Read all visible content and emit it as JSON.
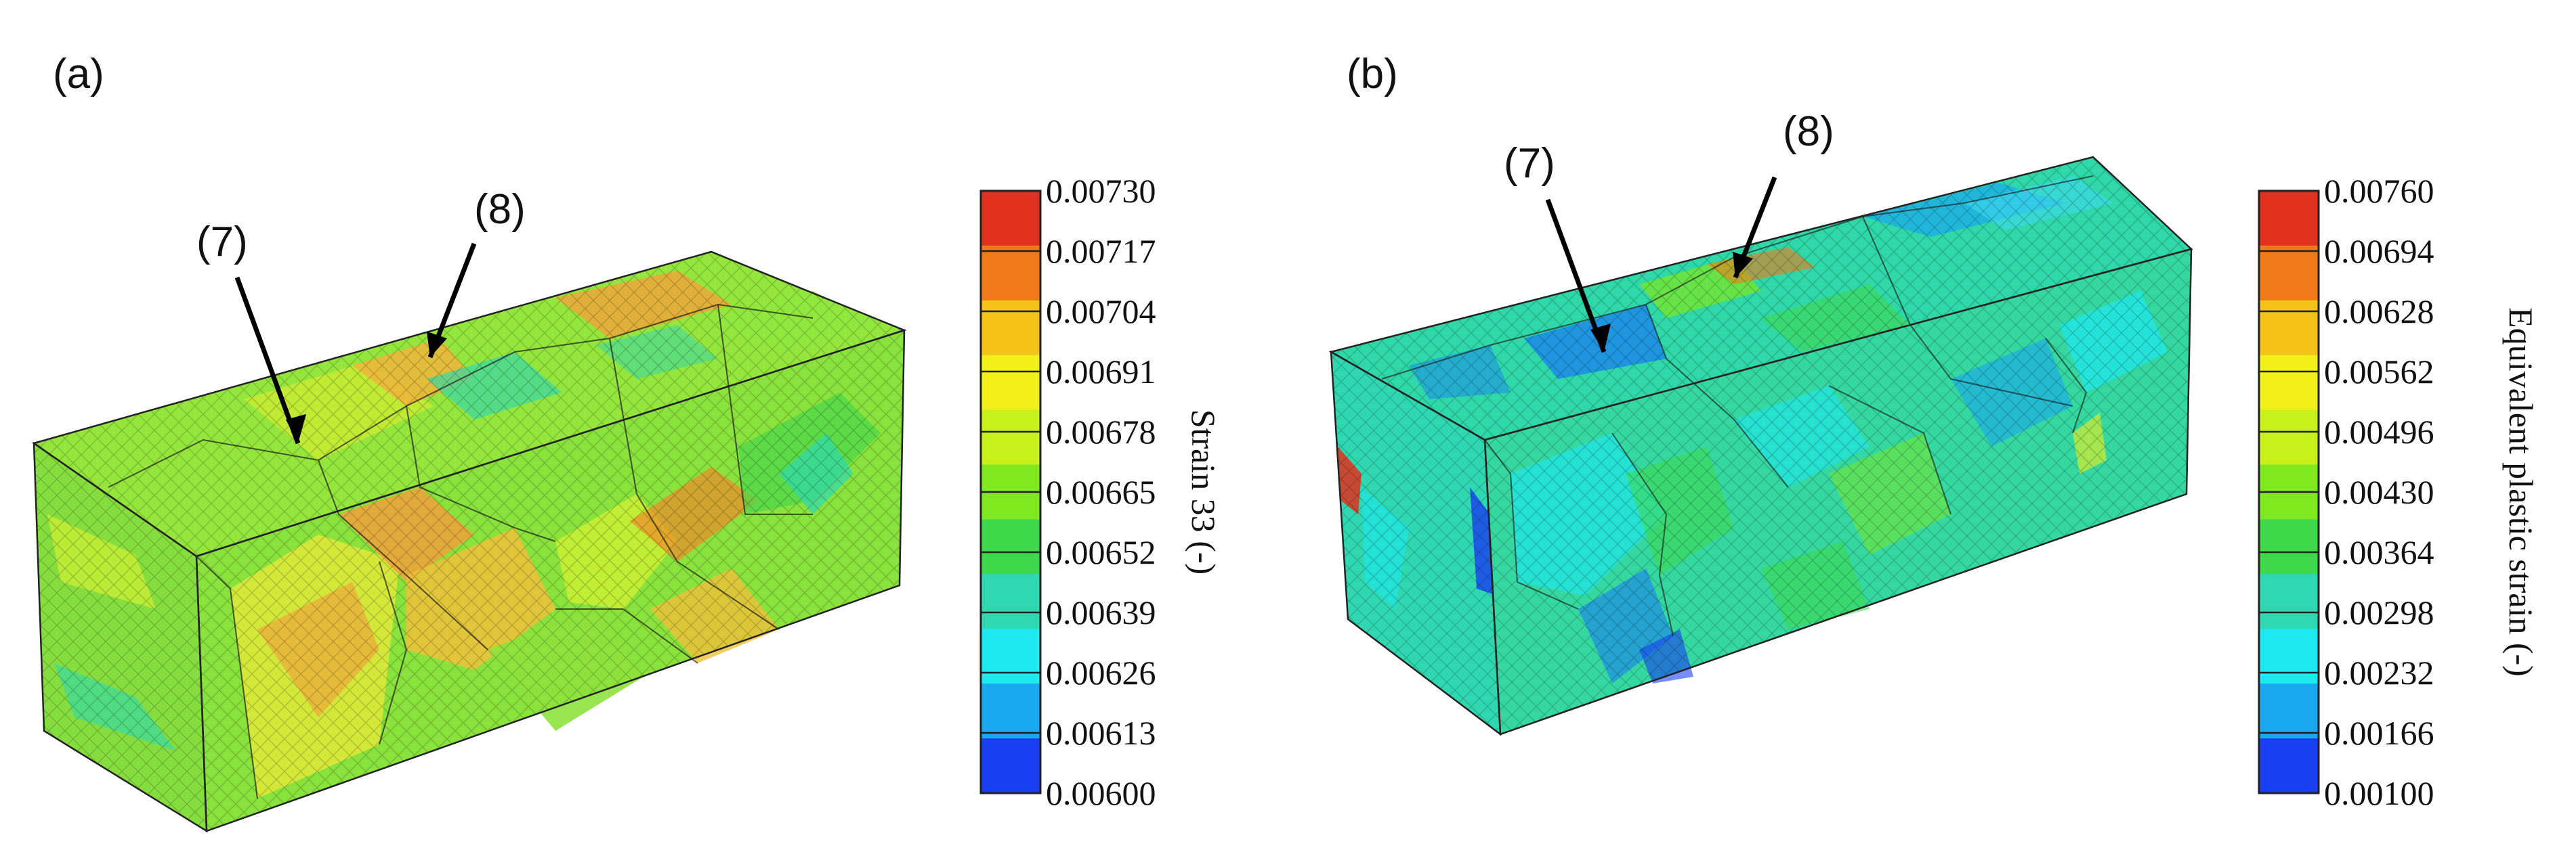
{
  "panels": [
    {
      "label": "(a)",
      "callouts": [
        "(7)",
        "(8)"
      ],
      "colorbar": {
        "title": "Strain 33 (-)",
        "ticks": [
          "0.00730",
          "0.00717",
          "0.00704",
          "0.00691",
          "0.00678",
          "0.00665",
          "0.00652",
          "0.00639",
          "0.00626",
          "0.00613",
          "0.00600"
        ],
        "colors": [
          "#e0301e",
          "#f07a1a",
          "#f5c21a",
          "#f2ef1a",
          "#c8f01a",
          "#7fe81e",
          "#3fd84a",
          "#2fd8b0",
          "#1ee8f0",
          "#1aa8f0",
          "#1a3ff0"
        ]
      }
    },
    {
      "label": "(b)",
      "callouts": [
        "(7)",
        "(8)"
      ],
      "colorbar": {
        "title": "Equivalent plastic strain (-)",
        "ticks": [
          "0.00760",
          "0.00694",
          "0.00628",
          "0.00562",
          "0.00496",
          "0.00430",
          "0.00364",
          "0.00298",
          "0.00232",
          "0.00166",
          "0.00100"
        ],
        "colors": [
          "#e0301e",
          "#f07a1a",
          "#f5c21a",
          "#f2ef1a",
          "#c8f01a",
          "#7fe81e",
          "#3fd84a",
          "#2fd8b0",
          "#1ee8f0",
          "#1aa8f0",
          "#1a3ff0"
        ]
      }
    }
  ]
}
